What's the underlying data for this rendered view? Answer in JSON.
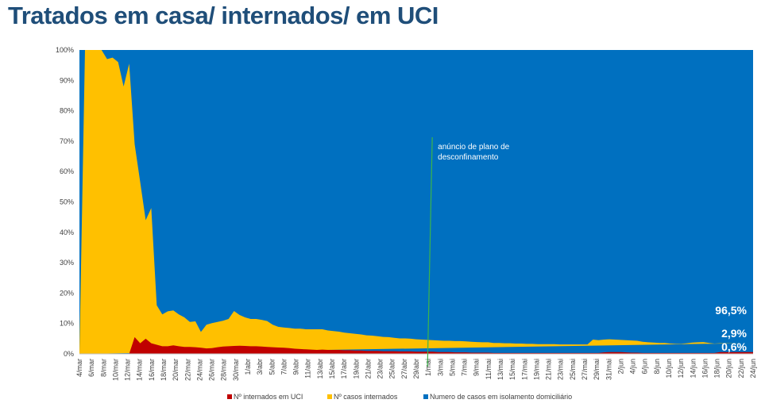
{
  "title": "Tratados em casa/ internados/ em UCI",
  "chart_data": {
    "type": "area",
    "stacked_percent": true,
    "y_ticks": [
      "0%",
      "10%",
      "20%",
      "30%",
      "40%",
      "50%",
      "60%",
      "70%",
      "80%",
      "90%",
      "100%"
    ],
    "ylim": [
      0,
      100
    ],
    "x_tick_labels": [
      "4/mar",
      "6/mar",
      "8/mar",
      "10/mar",
      "12/mar",
      "14/mar",
      "16/mar",
      "18/mar",
      "20/mar",
      "22/mar",
      "24/mar",
      "26/mar",
      "28/mar",
      "30/mar",
      "1/abr",
      "3/abr",
      "5/abr",
      "7/abr",
      "9/abr",
      "11/abr",
      "13/abr",
      "15/abr",
      "17/abr",
      "19/abr",
      "21/abr",
      "23/abr",
      "25/abr",
      "27/abr",
      "29/abr",
      "1/mai",
      "3/mai",
      "5/mai",
      "7/mai",
      "9/mai",
      "11/mai",
      "13/mai",
      "15/mai",
      "17/mai",
      "19/mai",
      "21/mai",
      "23/mai",
      "25/mai",
      "27/mai",
      "29/mai",
      "31/mai",
      "2/jun",
      "4/jun",
      "6/jun",
      "8/jun",
      "10/jun",
      "12/jun",
      "14/jun",
      "16/jun",
      "18/jun",
      "20/jun",
      "22/jun",
      "24/jun"
    ],
    "series": [
      {
        "name": "Nº internados em UCI",
        "color": "#c00000",
        "values": [
          0,
          0,
          0,
          0,
          0,
          0,
          0,
          0,
          0,
          0,
          5.5,
          3.5,
          5,
          3.5,
          3,
          2.5,
          2.5,
          2.8,
          2.5,
          2.3,
          2.3,
          2.2,
          2,
          1.8,
          1.9,
          2.2,
          2.4,
          2.5,
          2.6,
          2.7,
          2.6,
          2.5,
          2.5,
          2.4,
          2.3,
          2.2,
          2.1,
          2,
          1.9,
          1.7,
          1.6,
          1.5,
          1.4,
          1.3,
          1.4,
          1.3,
          1.3,
          1.3,
          1.2,
          1.2,
          1.1,
          1.1,
          1.0,
          1.0,
          1.0,
          0.9,
          0.9,
          0.9,
          0.8,
          0.8,
          0.8,
          0.7,
          0.7,
          0.7,
          0.7,
          0.6,
          0.6,
          0.6,
          0.5,
          0.5,
          0.5,
          0.4,
          0.4,
          0.4,
          0.4,
          0.3,
          0.3,
          0.3,
          0.3,
          0.3,
          0.3,
          0.3,
          0.3,
          0.3,
          0.3,
          0.3,
          0.3,
          0.3,
          0.3,
          0.3,
          0.3,
          0.3,
          0.3,
          0.3,
          0.3,
          0.5,
          0.6,
          0.6,
          0.6,
          0.5,
          0.4,
          0.4,
          0.3,
          0.3,
          0.3,
          0.3,
          0.3,
          0.3,
          0.3,
          0.3,
          0.3,
          0.3,
          0.3,
          0.3,
          0.3,
          0.3,
          0.6,
          0.6,
          0.6,
          0.6,
          0.6,
          0.6,
          0.6
        ]
      },
      {
        "name": "Nº casos internados",
        "color": "#ffc000",
        "values": [
          0,
          100,
          100,
          100,
          100,
          97,
          97.5,
          96,
          88,
          95.5,
          63.5,
          53,
          39,
          44.5,
          13,
          10.5,
          11.5,
          11.5,
          10.5,
          9.7,
          8.2,
          8.5,
          5.2,
          7.8,
          8.2,
          8.3,
          8.5,
          9.0,
          11.5,
          10.1,
          9.4,
          9.0,
          9.0,
          8.8,
          8.5,
          7.4,
          6.8,
          6.7,
          6.6,
          6.6,
          6.7,
          6.6,
          6.7,
          6.8,
          6.7,
          6.4,
          6.2,
          6.0,
          5.8,
          5.6,
          5.5,
          5.3,
          5.1,
          5.0,
          4.8,
          4.7,
          4.6,
          4.4,
          4.3,
          4.3,
          4.2,
          4.1,
          4.0,
          3.9,
          3.8,
          3.8,
          3.7,
          3.7,
          3.7,
          3.7,
          3.6,
          3.6,
          3.5,
          3.4,
          3.4,
          3.3,
          3.3,
          3.2,
          3.2,
          3.1,
          3.1,
          3.0,
          3.0,
          2.9,
          2.9,
          2.9,
          2.9,
          2.8,
          2.8,
          2.8,
          2.8,
          2.8,
          2.8,
          4.4,
          4.2,
          4.2,
          4.2,
          4.1,
          4.0,
          4.0,
          4.0,
          3.9,
          3.7,
          3.5,
          3.4,
          3.3,
          3.3,
          3.1,
          3.0,
          3.0,
          3.2,
          3.4,
          3.5,
          3.6,
          3.3,
          3.1,
          2.9,
          2.9,
          2.9,
          2.9,
          2.9
        ]
      },
      {
        "name": "Numero de casos em isolamento domiciliário",
        "color": "#0070c0",
        "values": "remainder to 100%"
      }
    ],
    "annotation": {
      "text_line1": "anúncio de plano de",
      "text_line2": "desconfinamento",
      "at_label": "1/mai",
      "line_color": "#3cb54a"
    },
    "end_labels": [
      "96,5%",
      "2,9%",
      "0,6%"
    ]
  }
}
